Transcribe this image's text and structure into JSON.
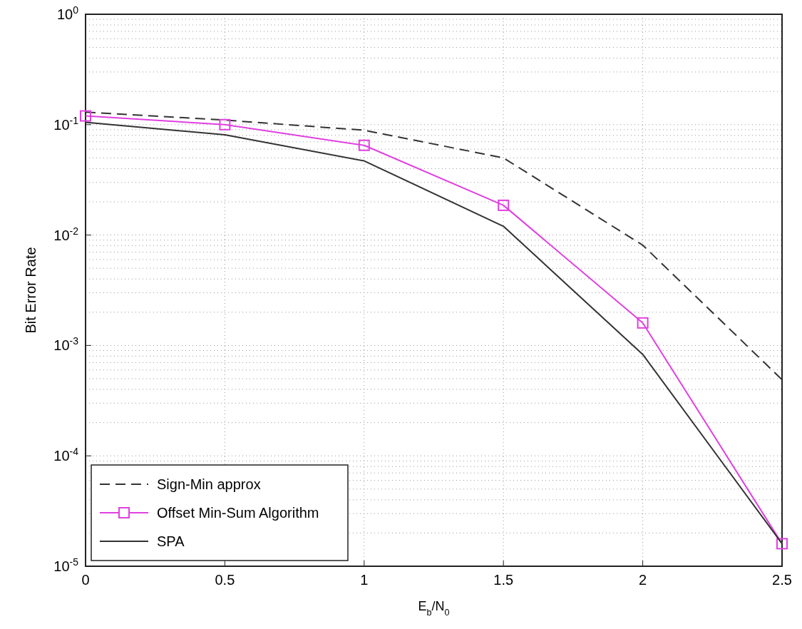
{
  "chart_data": {
    "type": "line",
    "xlabel": "E$_{b}$/N$_{0}$",
    "ylabel": "Bit Error Rate",
    "x": [
      0,
      0.5,
      1,
      1.5,
      2,
      2.5
    ],
    "series": [
      {
        "name": "Sign-Min approx",
        "color": "#333333",
        "line_style": "dashed",
        "marker": "none",
        "values": [
          0.13,
          0.11,
          0.089,
          0.05,
          0.0081,
          0.00049
        ]
      },
      {
        "name": "Offset Min-Sum Algorithm",
        "color": "#e040e0",
        "line_style": "solid",
        "marker": "square",
        "values": [
          0.12,
          0.1,
          0.065,
          0.0186,
          0.0016,
          1.6e-05
        ]
      },
      {
        "name": "SPA",
        "color": "#333333",
        "line_style": "solid",
        "marker": "none",
        "values": [
          0.105,
          0.081,
          0.047,
          0.012,
          0.00083,
          1.6e-05
        ]
      }
    ],
    "log": "y",
    "xlim": [
      0,
      2.5
    ],
    "ylim": [
      1e-05,
      1
    ],
    "xticks": [
      0,
      0.5,
      1,
      1.5,
      2,
      2.5
    ],
    "yticks": [
      {
        "value": 1,
        "label": "10$^{0}$"
      },
      {
        "value": 0.1,
        "label": "10$^{-1}$"
      },
      {
        "value": 0.01,
        "label": "10$^{-2}$"
      },
      {
        "value": 0.001,
        "label": "10$^{-3}$"
      },
      {
        "value": 0.0001,
        "label": "10$^{-4}$"
      },
      {
        "value": 1e-05,
        "label": "10$^{-5}$"
      }
    ],
    "grid": true,
    "legend": "bottom left"
  }
}
